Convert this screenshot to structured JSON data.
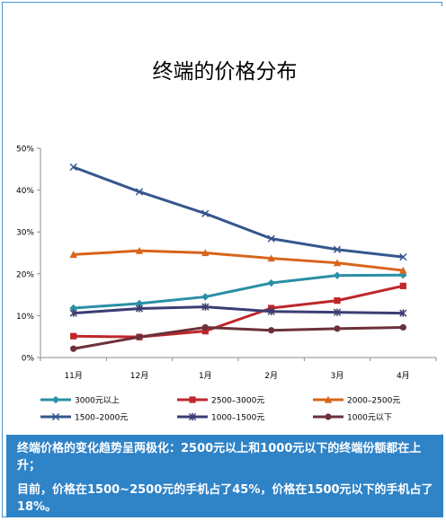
{
  "chart_data": {
    "type": "line",
    "title": "终端的价格分布",
    "categories": [
      "11月",
      "12月",
      "1月",
      "2月",
      "3月",
      "4月"
    ],
    "ylim": [
      0,
      50
    ],
    "y_ticks": [
      "0%",
      "10%",
      "20%",
      "30%",
      "40%",
      "50%"
    ],
    "y_tick_values": [
      0,
      10,
      20,
      30,
      40,
      50
    ],
    "grid": false,
    "legend_position": "bottom",
    "series": [
      {
        "name": "3000元以上",
        "color": "#2a90a6",
        "marker": "diamond",
        "values": [
          11.8,
          12.9,
          14.5,
          17.8,
          19.6,
          19.7
        ]
      },
      {
        "name": "2500–3000元",
        "color": "#c0262c",
        "marker": "square",
        "values": [
          5.1,
          4.9,
          6.3,
          11.8,
          13.6,
          17.1
        ]
      },
      {
        "name": "2000–2500元",
        "color": "#d8641b",
        "marker": "triangle",
        "values": [
          24.6,
          25.5,
          25.0,
          23.7,
          22.6,
          20.8
        ]
      },
      {
        "name": "1500–2000元",
        "color": "#35578d",
        "marker": "x",
        "values": [
          45.5,
          39.6,
          34.4,
          28.4,
          25.8,
          24.0
        ]
      },
      {
        "name": "1000–1500元",
        "color": "#3b3d73",
        "marker": "star",
        "values": [
          10.6,
          11.7,
          12.1,
          11.0,
          10.8,
          10.6
        ]
      },
      {
        "name": "1000元以下",
        "color": "#6b3139",
        "marker": "circle",
        "values": [
          2.1,
          4.9,
          7.2,
          6.5,
          6.9,
          7.2
        ]
      }
    ]
  },
  "notes": {
    "line1": "终端价格的变化趋势呈两极化：2500元以上和1000元以下的终端份额都在上升；",
    "line2": "目前，价格在1500~2500元的手机占了45%，价格在1500元以下的手机占了18%。"
  }
}
